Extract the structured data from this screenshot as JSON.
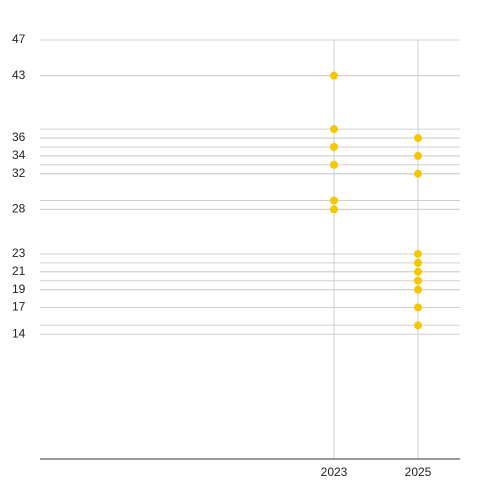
{
  "chart_data": {
    "type": "scatter",
    "series": [
      {
        "color": "#f6c700",
        "x": [
          2023,
          2023,
          2023,
          2023,
          2023,
          2023,
          2025,
          2025,
          2025,
          2025,
          2025,
          2025,
          2025,
          2025,
          2025,
          2025
        ],
        "values": [
          43,
          37,
          35,
          33,
          29,
          28,
          36,
          34,
          32,
          23,
          22,
          21,
          20,
          19,
          17,
          15
        ]
      }
    ],
    "xlim": [
      2016,
      2026
    ],
    "xticks": [
      2023,
      2025
    ],
    "ylim": [
      0,
      47
    ],
    "yticks": [
      47,
      43,
      36,
      34,
      32,
      28,
      23,
      21,
      19,
      17,
      14
    ],
    "grid": true,
    "point_gridlines": true
  }
}
